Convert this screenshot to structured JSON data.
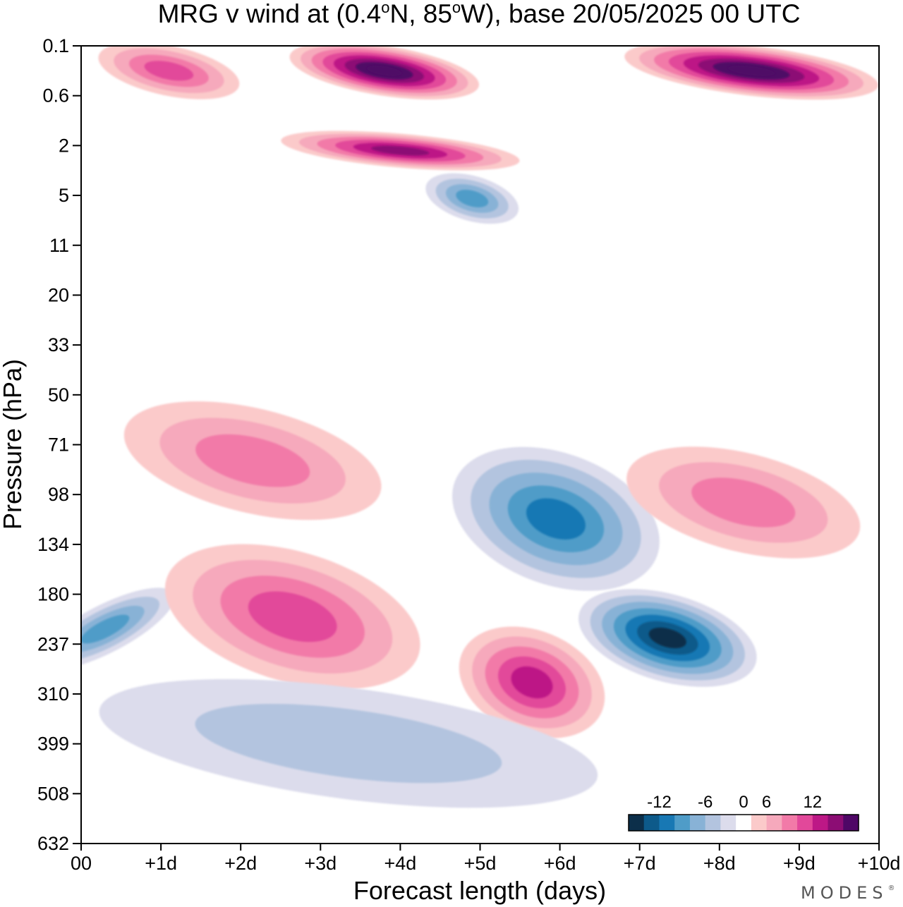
{
  "chart_data": {
    "type": "heatmap",
    "title": "MRG v wind at (0.4°N, 85°W),  base 20/05/2025  00 UTC",
    "title_parts": {
      "pre": "MRG v wind at (0.4",
      "deg": "o",
      "mid": "N, 85",
      "deg2": "o",
      "post": "W),  base 20/05/2025  00 UTC"
    },
    "xlabel": "Forecast length (days)",
    "ylabel": "Pressure (hPa)",
    "x_ticks": [
      "00",
      "+1d",
      "+2d",
      "+3d",
      "+4d",
      "+5d",
      "+6d",
      "+7d",
      "+8d",
      "+9d",
      "+10d"
    ],
    "xlim": [
      0,
      10
    ],
    "y_ticks": [
      "0.1",
      "0.6",
      "2",
      "5",
      "11",
      "20",
      "33",
      "50",
      "71",
      "98",
      "134",
      "180",
      "237",
      "310",
      "399",
      "508",
      "632"
    ],
    "y_scale": "log",
    "y_inverted": true,
    "colorbar": {
      "tick_labels": [
        "-12",
        "-6",
        "0",
        "6",
        "12"
      ],
      "tick_values": [
        -12,
        -6,
        0,
        6,
        12
      ],
      "levels": [
        -16,
        -14,
        -12,
        -10,
        -8,
        -6,
        -4,
        -2,
        2,
        4,
        6,
        8,
        10,
        12,
        14,
        16
      ],
      "colors": [
        "#0c2f4a",
        "#0d5a8a",
        "#1878b4",
        "#4f9cc8",
        "#88b2d6",
        "#b3c4df",
        "#dcdcec",
        "#ffffff",
        "#fbcaca",
        "#f6a9bc",
        "#f27aa8",
        "#e2489a",
        "#bd1886",
        "#8c0d74",
        "#4f0766"
      ]
    },
    "features": [
      {
        "sign": "positive",
        "value_approx": 8,
        "x_days": [
          0.2,
          2.0
        ],
        "p_hPa": [
          0.1,
          0.6
        ]
      },
      {
        "sign": "positive",
        "value_approx": 16,
        "x_days": [
          2.6,
          5.0
        ],
        "p_hPa": [
          0.1,
          0.6
        ]
      },
      {
        "sign": "positive",
        "value_approx": 16,
        "x_days": [
          6.8,
          10.0
        ],
        "p_hPa": [
          0.1,
          0.6
        ]
      },
      {
        "sign": "positive",
        "value_approx": 12,
        "x_days": [
          2.5,
          5.5
        ],
        "p_hPa": [
          1.5,
          3.0
        ]
      },
      {
        "sign": "negative",
        "value_approx": -8,
        "x_days": [
          4.3,
          5.5
        ],
        "p_hPa": [
          3.5,
          7.5
        ]
      },
      {
        "sign": "positive",
        "value_approx": 6,
        "x_days": [
          0.5,
          3.8
        ],
        "p_hPa": [
          55,
          110
        ]
      },
      {
        "sign": "negative",
        "value_approx": -10,
        "x_days": [
          4.6,
          7.3
        ],
        "p_hPa": [
          75,
          170
        ]
      },
      {
        "sign": "negative",
        "value_approx": -14,
        "x_days": [
          6.2,
          8.5
        ],
        "p_hPa": [
          180,
          290
        ]
      },
      {
        "sign": "negative",
        "value_approx": -8,
        "x_days": [
          0.0,
          0.6
        ],
        "p_hPa": [
          140,
          330
        ]
      },
      {
        "sign": "positive",
        "value_approx": 8,
        "x_days": [
          1.0,
          4.3
        ],
        "p_hPa": [
          140,
          290
        ]
      },
      {
        "sign": "positive",
        "value_approx": 10,
        "x_days": [
          4.7,
          6.6
        ],
        "p_hPa": [
          220,
          380
        ]
      },
      {
        "sign": "positive",
        "value_approx": 6,
        "x_days": [
          6.8,
          9.8
        ],
        "p_hPa": [
          75,
          140
        ]
      },
      {
        "sign": "negative",
        "value_approx": -4,
        "x_days": [
          0.2,
          6.5
        ],
        "p_hPa": [
          300,
          520
        ]
      }
    ]
  },
  "branding": {
    "logo_text": "MODES",
    "logo_mark": "®"
  }
}
